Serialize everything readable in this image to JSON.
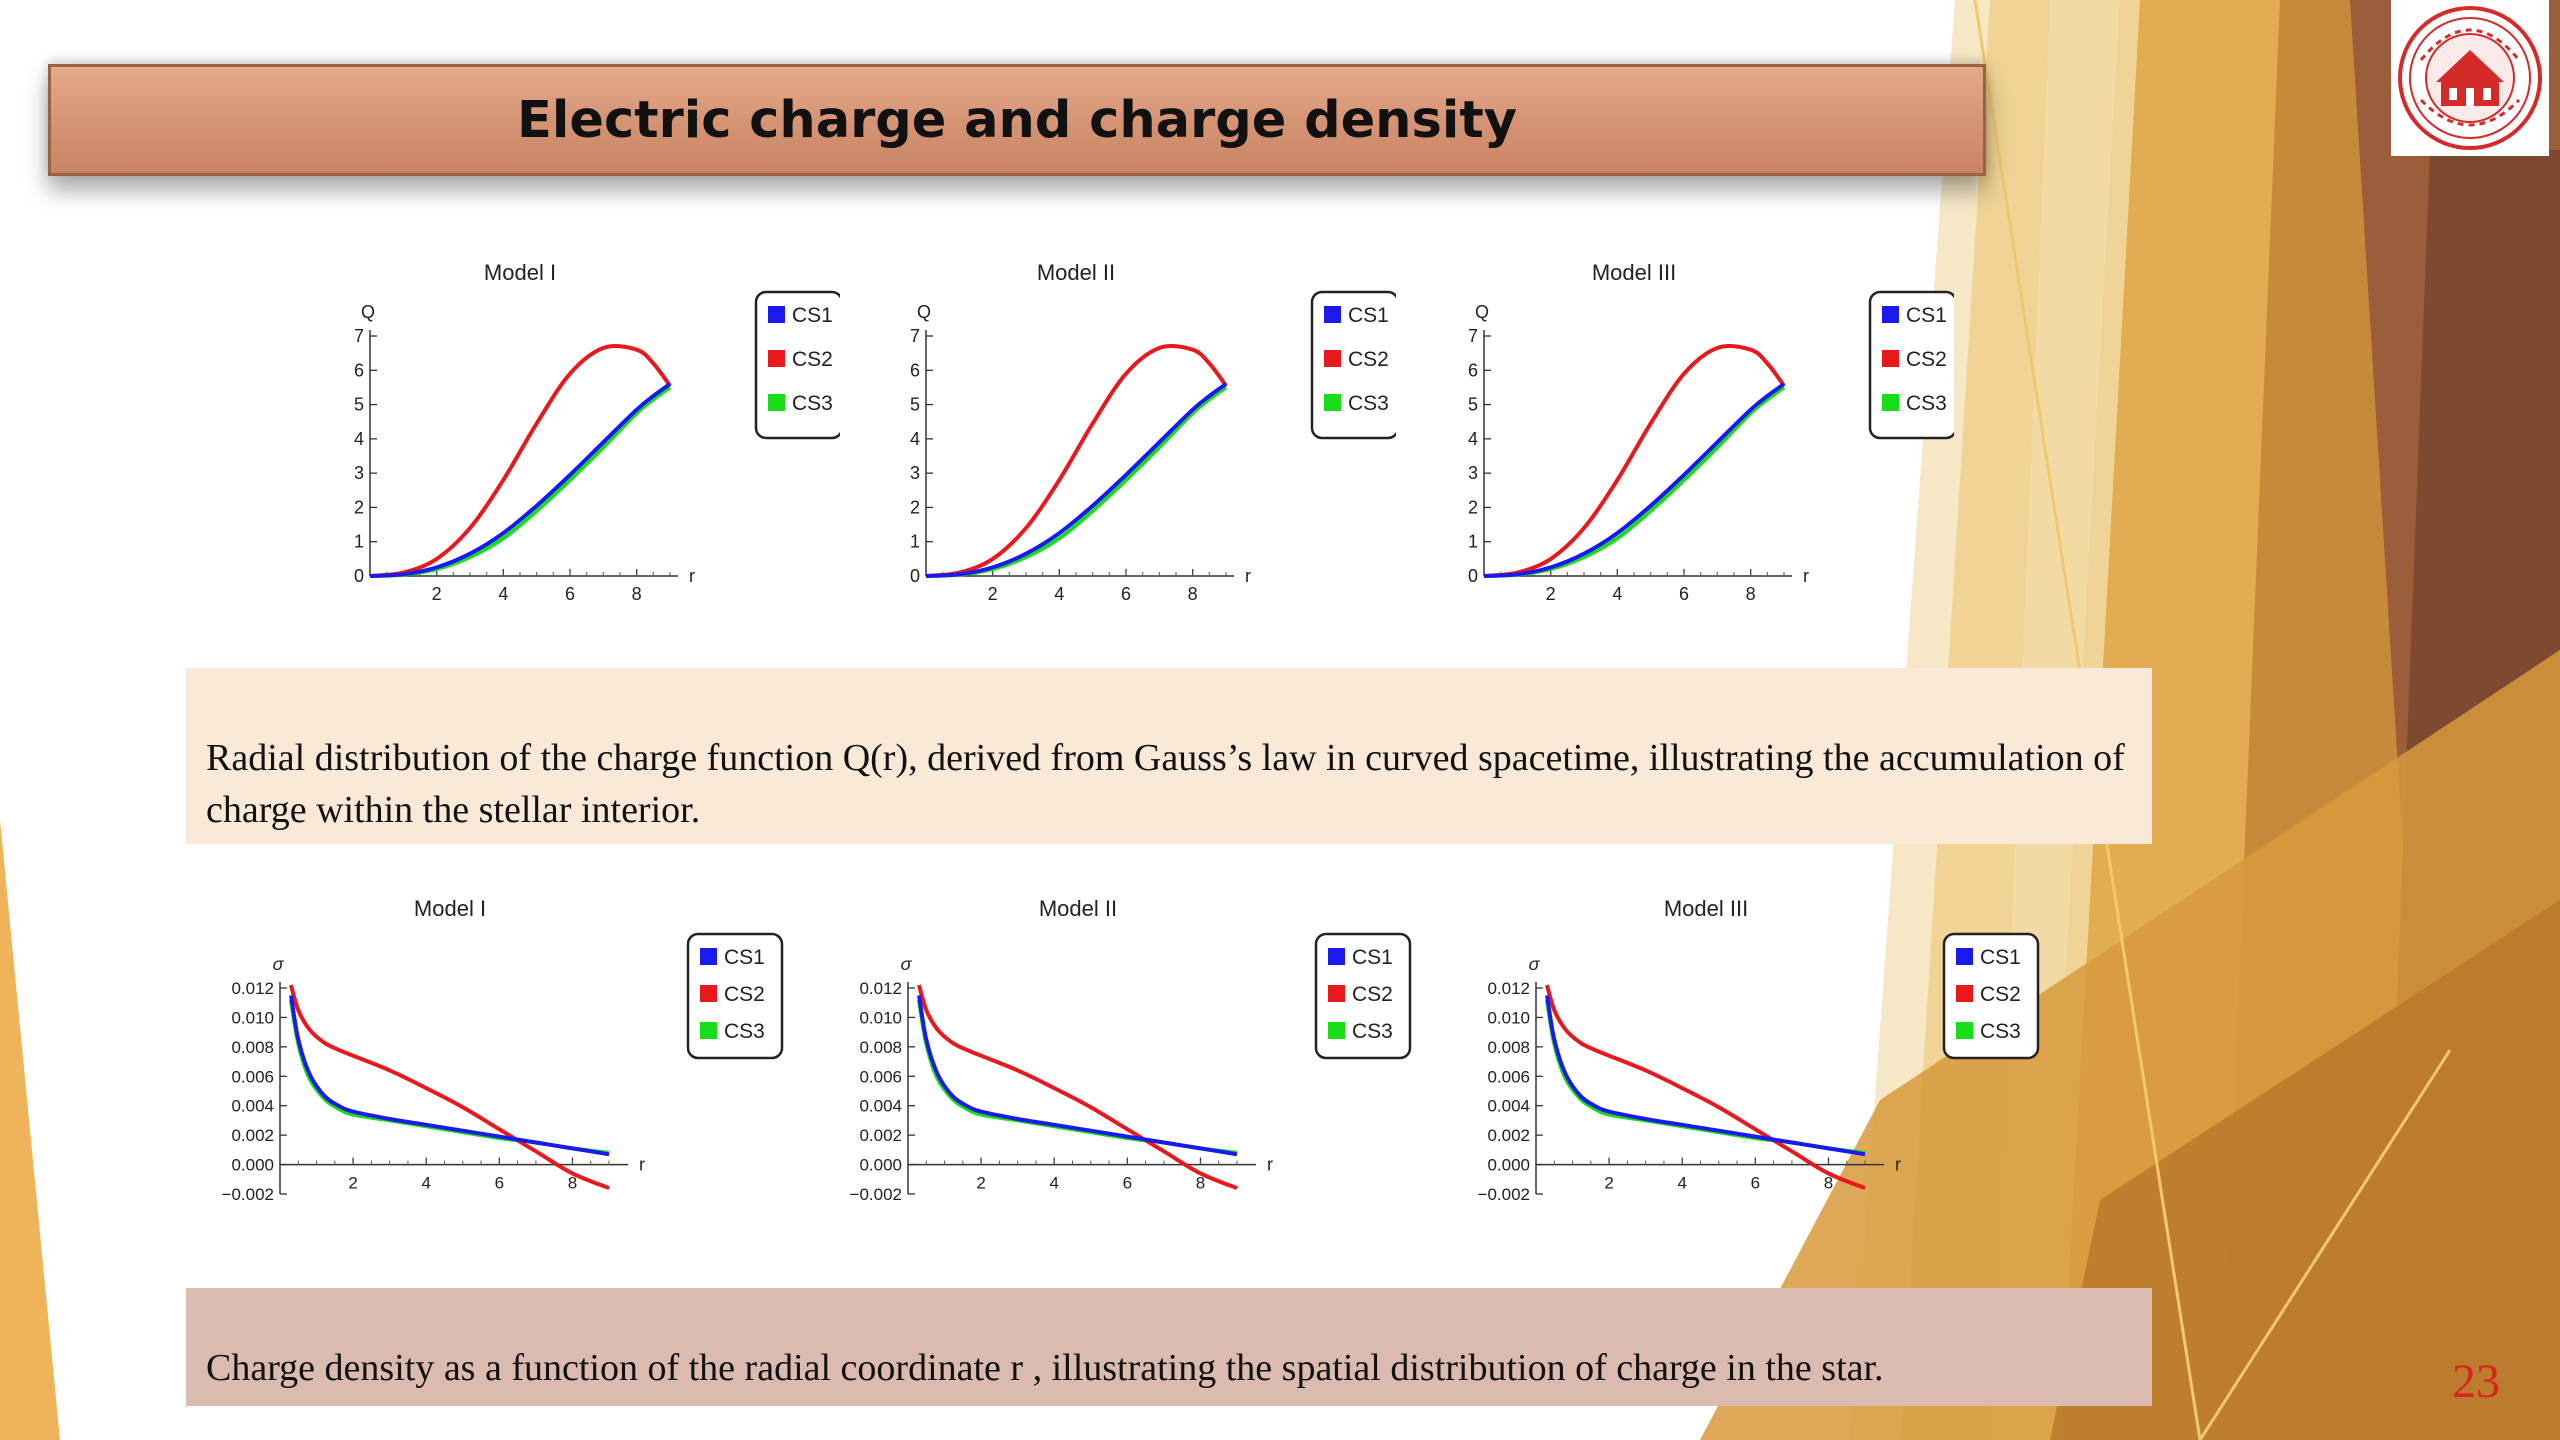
{
  "slide": {
    "title": "Electric charge and charge density",
    "page_number": "23",
    "caption_top": "Radial distribution of the charge function  Q(r), derived from Gauss’s law in curved spacetime, illustrating the accumulation of charge within the stellar interior.",
    "caption_bottom": "Charge density  as a function of the radial coordinate  r , illustrating the spatial distribution of charge in the star.",
    "accent_colors": {
      "title_bar": "#d8977a",
      "caption_top_bg": "#fbe9d8",
      "caption_bottom_bg": "#dbbbb0",
      "page_number": "#d8241c"
    },
    "logo_icon": "university-seal-icon"
  },
  "chart_data": [
    {
      "type": "line",
      "title": "Model I",
      "ylabel": "Q",
      "xlabel": "r",
      "xlim": [
        0,
        9
      ],
      "ylim": [
        0,
        7
      ],
      "xticks": [
        "2",
        "4",
        "6",
        "8"
      ],
      "yticks": [
        "0",
        "1",
        "2",
        "3",
        "4",
        "5",
        "6",
        "7"
      ],
      "x": [
        0,
        1,
        2,
        3,
        4,
        5,
        6,
        7,
        8,
        8.5,
        9
      ],
      "series": [
        {
          "name": "CS1",
          "color": "#1a1aee",
          "values": [
            0,
            0.05,
            0.25,
            0.65,
            1.25,
            2.05,
            2.95,
            3.9,
            4.85,
            5.25,
            5.6
          ]
        },
        {
          "name": "CS2",
          "color": "#e8181c",
          "values": [
            0,
            0.1,
            0.5,
            1.4,
            2.8,
            4.45,
            5.9,
            6.65,
            6.6,
            6.2,
            5.55
          ]
        },
        {
          "name": "CS3",
          "color": "#18dd18",
          "values": [
            0,
            0.04,
            0.2,
            0.55,
            1.1,
            1.9,
            2.8,
            3.75,
            4.75,
            5.15,
            5.5
          ]
        }
      ]
    },
    {
      "type": "line",
      "title": "Model II",
      "ylabel": "Q",
      "xlabel": "r",
      "xlim": [
        0,
        9
      ],
      "ylim": [
        0,
        7
      ],
      "xticks": [
        "2",
        "4",
        "6",
        "8"
      ],
      "yticks": [
        "0",
        "1",
        "2",
        "3",
        "4",
        "5",
        "6",
        "7"
      ],
      "x": [
        0,
        1,
        2,
        3,
        4,
        5,
        6,
        7,
        8,
        8.5,
        9
      ],
      "series": [
        {
          "name": "CS1",
          "color": "#1a1aee",
          "values": [
            0,
            0.05,
            0.25,
            0.65,
            1.25,
            2.05,
            2.95,
            3.9,
            4.85,
            5.25,
            5.6
          ]
        },
        {
          "name": "CS2",
          "color": "#e8181c",
          "values": [
            0,
            0.1,
            0.5,
            1.4,
            2.8,
            4.45,
            5.9,
            6.65,
            6.6,
            6.2,
            5.55
          ]
        },
        {
          "name": "CS3",
          "color": "#18dd18",
          "values": [
            0,
            0.04,
            0.2,
            0.55,
            1.1,
            1.9,
            2.8,
            3.75,
            4.75,
            5.15,
            5.5
          ]
        }
      ]
    },
    {
      "type": "line",
      "title": "Model III",
      "ylabel": "Q",
      "xlabel": "r",
      "xlim": [
        0,
        9
      ],
      "ylim": [
        0,
        7
      ],
      "xticks": [
        "2",
        "4",
        "6",
        "8"
      ],
      "yticks": [
        "0",
        "1",
        "2",
        "3",
        "4",
        "5",
        "6",
        "7"
      ],
      "x": [
        0,
        1,
        2,
        3,
        4,
        5,
        6,
        7,
        8,
        8.5,
        9
      ],
      "series": [
        {
          "name": "CS1",
          "color": "#1a1aee",
          "values": [
            0,
            0.05,
            0.25,
            0.65,
            1.25,
            2.05,
            2.95,
            3.9,
            4.85,
            5.25,
            5.6
          ]
        },
        {
          "name": "CS2",
          "color": "#e8181c",
          "values": [
            0,
            0.1,
            0.5,
            1.4,
            2.8,
            4.45,
            5.9,
            6.65,
            6.6,
            6.2,
            5.55
          ]
        },
        {
          "name": "CS3",
          "color": "#18dd18",
          "values": [
            0,
            0.04,
            0.2,
            0.55,
            1.1,
            1.9,
            2.8,
            3.75,
            4.75,
            5.15,
            5.5
          ]
        }
      ]
    },
    {
      "type": "line",
      "title": "Model I",
      "ylabel": "σ",
      "xlabel": "r",
      "xlim": [
        0,
        9.3
      ],
      "ylim": [
        -0.002,
        0.012
      ],
      "xticks": [
        "2",
        "4",
        "6",
        "8"
      ],
      "yticks": [
        "−0.002",
        "0.000",
        "0.002",
        "0.004",
        "0.006",
        "0.008",
        "0.010",
        "0.012"
      ],
      "x": [
        0.3,
        0.5,
        0.8,
        1.2,
        1.6,
        2,
        3,
        4,
        5,
        6,
        7,
        8,
        9
      ],
      "series": [
        {
          "name": "CS1",
          "color": "#1a1aee",
          "values": [
            0.0115,
            0.0085,
            0.0062,
            0.0047,
            0.004,
            0.0036,
            0.0031,
            0.0027,
            0.0023,
            0.0019,
            0.0015,
            0.0011,
            0.0007
          ]
        },
        {
          "name": "CS2",
          "color": "#e8181c",
          "values": [
            0.0122,
            0.0105,
            0.0092,
            0.0083,
            0.0078,
            0.0074,
            0.0064,
            0.0052,
            0.0039,
            0.0024,
            0.0009,
            -0.0006,
            -0.0016
          ]
        },
        {
          "name": "CS3",
          "color": "#18dd18",
          "values": [
            0.0112,
            0.0082,
            0.0059,
            0.0045,
            0.0038,
            0.0034,
            0.003,
            0.0026,
            0.0022,
            0.0018,
            0.0015,
            0.0011,
            0.0008
          ]
        }
      ]
    },
    {
      "type": "line",
      "title": "Model II",
      "ylabel": "σ",
      "xlabel": "r",
      "xlim": [
        0,
        9.3
      ],
      "ylim": [
        -0.002,
        0.012
      ],
      "xticks": [
        "2",
        "4",
        "6",
        "8"
      ],
      "yticks": [
        "−0.002",
        "0.000",
        "0.002",
        "0.004",
        "0.006",
        "0.008",
        "0.010",
        "0.012"
      ],
      "x": [
        0.3,
        0.5,
        0.8,
        1.2,
        1.6,
        2,
        3,
        4,
        5,
        6,
        7,
        8,
        9
      ],
      "series": [
        {
          "name": "CS1",
          "color": "#1a1aee",
          "values": [
            0.0115,
            0.0085,
            0.0062,
            0.0047,
            0.004,
            0.0036,
            0.0031,
            0.0027,
            0.0023,
            0.0019,
            0.0015,
            0.0011,
            0.0007
          ]
        },
        {
          "name": "CS2",
          "color": "#e8181c",
          "values": [
            0.0122,
            0.0105,
            0.0092,
            0.0083,
            0.0078,
            0.0074,
            0.0064,
            0.0052,
            0.0039,
            0.0024,
            0.0009,
            -0.0006,
            -0.0016
          ]
        },
        {
          "name": "CS3",
          "color": "#18dd18",
          "values": [
            0.0112,
            0.0082,
            0.0059,
            0.0045,
            0.0038,
            0.0034,
            0.003,
            0.0026,
            0.0022,
            0.0018,
            0.0015,
            0.0011,
            0.0008
          ]
        }
      ]
    },
    {
      "type": "line",
      "title": "Model III",
      "ylabel": "σ",
      "xlabel": "r",
      "xlim": [
        0,
        9.3
      ],
      "ylim": [
        -0.002,
        0.012
      ],
      "xticks": [
        "2",
        "4",
        "6",
        "8"
      ],
      "yticks": [
        "−0.002",
        "0.000",
        "0.002",
        "0.004",
        "0.006",
        "0.008",
        "0.010",
        "0.012"
      ],
      "x": [
        0.3,
        0.5,
        0.8,
        1.2,
        1.6,
        2,
        3,
        4,
        5,
        6,
        7,
        8,
        9
      ],
      "series": [
        {
          "name": "CS1",
          "color": "#1a1aee",
          "values": [
            0.0115,
            0.0085,
            0.0062,
            0.0047,
            0.004,
            0.0036,
            0.0031,
            0.0027,
            0.0023,
            0.0019,
            0.0015,
            0.0011,
            0.0007
          ]
        },
        {
          "name": "CS2",
          "color": "#e8181c",
          "values": [
            0.0122,
            0.0105,
            0.0092,
            0.0083,
            0.0078,
            0.0074,
            0.0064,
            0.0052,
            0.0039,
            0.0024,
            0.0009,
            -0.0006,
            -0.0016
          ]
        },
        {
          "name": "CS3",
          "color": "#18dd18",
          "values": [
            0.0112,
            0.0082,
            0.0059,
            0.0045,
            0.0038,
            0.0034,
            0.003,
            0.0026,
            0.0022,
            0.0018,
            0.0015,
            0.0011,
            0.0008
          ]
        }
      ]
    }
  ]
}
